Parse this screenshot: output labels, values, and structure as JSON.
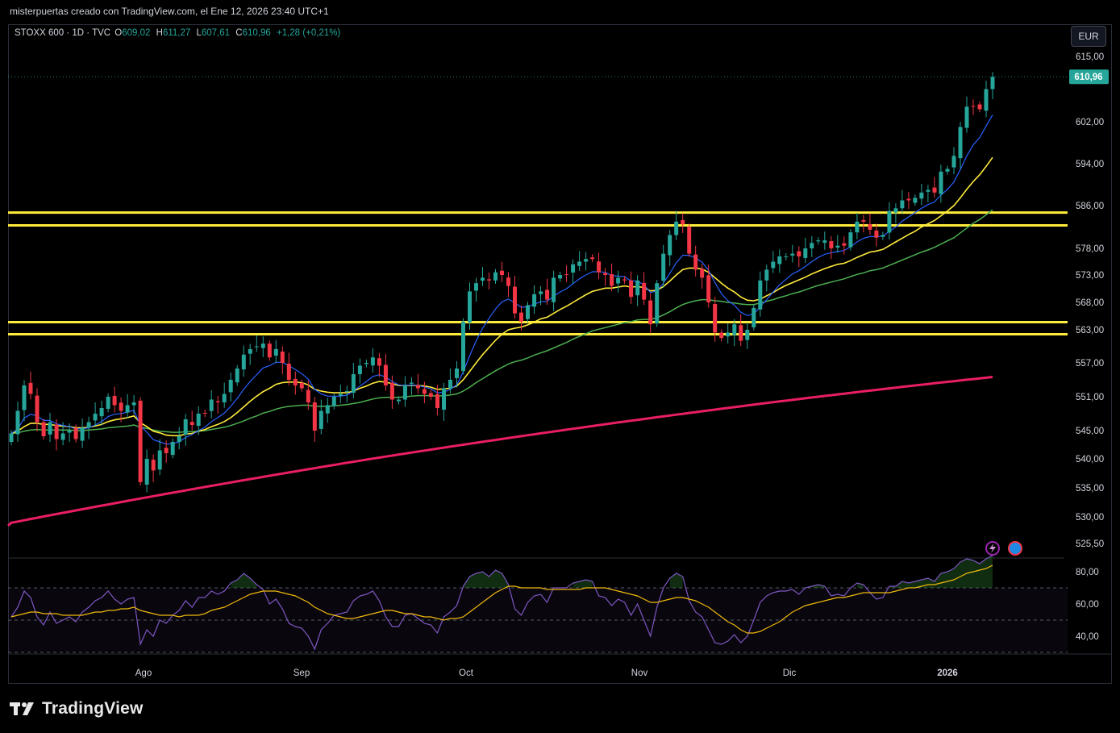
{
  "header": {
    "caption": "misterpuertas creado con TradingView.com, el Ene 12, 2026 23:40 UTC+1"
  },
  "legend": {
    "symbol": "STOXX 600 · 1D · TVC",
    "open_label": "O",
    "open": "609,02",
    "high_label": "H",
    "high": "611,27",
    "low_label": "L",
    "low": "607,61",
    "close_label": "C",
    "close": "610,96",
    "change": "+1,28 (+0,21%)"
  },
  "currency_button": "EUR",
  "last_price_label": "610,96",
  "footer": {
    "brand": "TradingView"
  },
  "colors": {
    "up": "#26a69a",
    "down": "#f23645",
    "ema_fast": "#2962ff",
    "ema_mid": "#ffeb3b",
    "ema_slow": "#4caf50",
    "ema_long": "#e91e63",
    "levels": "#ffeb3b",
    "rsi": "#7e57c2",
    "rsi_ma": "#f0b90b"
  },
  "icons": [
    "lightning-icon",
    "globe-icon"
  ],
  "chart_data": [
    {
      "type": "candlestick",
      "title": "",
      "currency": "EUR",
      "y_axis_ticks": [
        "615,00",
        "602,00",
        "594,00",
        "586,00",
        "578,00",
        "573,00",
        "568,00",
        "563,00",
        "557,00",
        "551,00",
        "545,00",
        "540,00",
        "535,00",
        "530,00",
        "525,50"
      ],
      "x_axis_ticks": [
        "Ago",
        "Sep",
        "Oct",
        "Nov",
        "Dic",
        "2026"
      ],
      "horizontal_levels": [
        584.7,
        582.3,
        564.4,
        562.2
      ],
      "series_names": [],
      "closes": [
        544.5,
        548.5,
        553.0,
        551.5,
        546.5,
        544.0,
        546.5,
        543.5,
        544.5,
        545.0,
        543.5,
        545.5,
        546.5,
        548.0,
        549.0,
        551.0,
        549.5,
        548.5,
        549.5,
        550.0,
        536.0,
        540.0,
        538.0,
        541.5,
        541.0,
        543.0,
        544.0,
        547.0,
        546.0,
        548.0,
        548.0,
        550.5,
        550.0,
        551.5,
        554.0,
        556.0,
        558.5,
        559.5,
        560.0,
        560.5,
        558.0,
        559.5,
        557.0,
        554.0,
        553.0,
        552.5,
        550.0,
        545.0,
        548.5,
        549.5,
        551.0,
        551.5,
        552.0,
        555.0,
        556.5,
        557.0,
        558.0,
        556.5,
        553.0,
        550.5,
        550.5,
        553.0,
        553.5,
        552.5,
        551.5,
        551.0,
        549.0,
        552.5,
        554.0,
        556.0,
        564.5,
        570.0,
        571.5,
        572.5,
        572.0,
        573.5,
        573.0,
        571.0,
        566.0,
        564.5,
        567.5,
        569.5,
        570.0,
        568.5,
        572.5,
        573.0,
        573.0,
        575.0,
        575.5,
        576.0,
        576.0,
        573.5,
        573.0,
        571.0,
        572.5,
        572.0,
        569.0,
        572.0,
        568.5,
        564.0,
        571.5,
        577.0,
        580.5,
        583.0,
        582.5,
        577.0,
        574.0,
        572.5,
        568.0,
        562.5,
        561.5,
        562.5,
        564.0,
        561.0,
        563.0,
        567.0,
        572.0,
        574.0,
        575.5,
        576.5,
        576.5,
        577.0,
        576.5,
        578.0,
        579.0,
        579.5,
        579.5,
        578.0,
        578.5,
        578.5,
        581.0,
        583.0,
        583.0,
        581.5,
        580.0,
        580.5,
        585.0,
        585.5,
        587.0,
        587.0,
        587.5,
        588.5,
        589.0,
        588.5,
        592.5,
        593.0,
        595.5,
        601.0,
        605.0,
        605.0,
        604.5,
        608.5,
        610.96
      ],
      "ema_fast": [
        544.5,
        545.3,
        547.2,
        547.9,
        547.6,
        546.8,
        546.8,
        546.2,
        545.9,
        545.7,
        545.3,
        545.3,
        545.5,
        546.0,
        546.6,
        547.5,
        547.9,
        548.0,
        548.3,
        548.6,
        545.9,
        544.7,
        543.4,
        543.0,
        542.6,
        542.7,
        543.0,
        543.8,
        544.3,
        545.0,
        545.6,
        546.6,
        547.3,
        548.1,
        549.3,
        550.7,
        552.3,
        553.7,
        554.9,
        556.1,
        556.5,
        557.1,
        557.1,
        556.5,
        555.8,
        555.1,
        554.1,
        552.3,
        551.5,
        551.1,
        551.1,
        551.1,
        551.3,
        552.0,
        552.9,
        553.7,
        554.6,
        554.9,
        554.5,
        553.7,
        553.1,
        553.0,
        553.1,
        553.0,
        552.7,
        552.4,
        551.7,
        551.8,
        552.3,
        553.1,
        555.4,
        558.3,
        561.0,
        563.3,
        565.1,
        566.8,
        568.1,
        568.6,
        567.9,
        567.1,
        567.2,
        567.7,
        568.1,
        568.2,
        569.1,
        569.9,
        570.5,
        571.4,
        572.3,
        573.0,
        573.6,
        573.6,
        573.5,
        572.9,
        572.8,
        572.7,
        571.9,
        571.9,
        571.2,
        569.8,
        570.1,
        571.5,
        573.3,
        575.3,
        576.7,
        576.7,
        576.2,
        575.4,
        573.9,
        571.6,
        569.6,
        568.3,
        567.5,
        566.2,
        565.6,
        565.9,
        567.2,
        568.5,
        569.9,
        571.2,
        572.2,
        573.2,
        573.8,
        574.6,
        575.5,
        576.3,
        576.9,
        577.2,
        577.4,
        577.6,
        578.3,
        579.2,
        579.9,
        580.2,
        580.2,
        580.3,
        581.2,
        582.0,
        583.1,
        583.9,
        584.7,
        585.5,
        586.2,
        586.7,
        588.0,
        589.1,
        590.5,
        592.9,
        595.5,
        597.6,
        599.0,
        601.2,
        603.4
      ],
      "ema_mid": [
        544.5,
        544.9,
        545.7,
        546.3,
        546.3,
        546.1,
        546.1,
        545.9,
        545.8,
        545.7,
        545.5,
        545.5,
        545.6,
        545.8,
        546.1,
        546.6,
        546.9,
        547.1,
        547.3,
        547.6,
        546.4,
        545.7,
        544.9,
        544.6,
        544.2,
        544.1,
        544.1,
        544.4,
        544.5,
        544.9,
        545.2,
        545.7,
        546.1,
        546.6,
        547.3,
        548.2,
        549.2,
        550.2,
        551.1,
        551.9,
        552.5,
        553.2,
        553.5,
        553.6,
        553.6,
        553.5,
        553.1,
        552.3,
        552.0,
        551.8,
        551.7,
        551.7,
        551.7,
        552.0,
        552.5,
        552.9,
        553.4,
        553.7,
        553.6,
        553.3,
        553.0,
        553.0,
        553.0,
        553.0,
        552.9,
        552.7,
        552.3,
        552.4,
        552.5,
        552.9,
        554.0,
        555.5,
        557.0,
        558.5,
        559.8,
        561.1,
        562.2,
        563.0,
        563.3,
        563.5,
        563.9,
        564.4,
        565.0,
        565.3,
        566.0,
        566.7,
        567.3,
        568.0,
        568.7,
        569.4,
        570.0,
        570.3,
        570.6,
        570.6,
        570.8,
        571.0,
        570.8,
        570.9,
        570.7,
        570.1,
        570.2,
        570.9,
        571.9,
        573.0,
        574.0,
        574.3,
        574.3,
        574.1,
        573.5,
        572.5,
        571.5,
        570.6,
        569.9,
        569.0,
        568.4,
        568.3,
        568.6,
        569.2,
        569.8,
        570.5,
        571.1,
        571.6,
        572.1,
        572.6,
        573.2,
        573.7,
        574.2,
        574.6,
        575.0,
        575.2,
        575.7,
        576.3,
        576.8,
        577.3,
        577.5,
        577.8,
        578.5,
        579.2,
        579.9,
        580.6,
        581.2,
        582.0,
        582.6,
        583.2,
        584.1,
        585.0,
        586.0,
        587.5,
        589.1,
        590.6,
        591.9,
        593.5,
        595.2
      ],
      "ema_slow": [
        544.5,
        544.6,
        544.9,
        545.1,
        545.2,
        545.1,
        545.1,
        545.1,
        545.1,
        545.1,
        545.0,
        545.0,
        545.1,
        545.2,
        545.3,
        545.5,
        545.6,
        545.7,
        545.8,
        546.0,
        545.6,
        545.4,
        545.1,
        544.9,
        544.8,
        544.7,
        544.7,
        544.8,
        544.8,
        544.9,
        545.0,
        545.2,
        545.4,
        545.6,
        545.9,
        546.3,
        546.7,
        547.2,
        547.6,
        548.1,
        548.4,
        548.8,
        549.1,
        549.3,
        549.4,
        549.5,
        549.5,
        549.3,
        549.3,
        549.3,
        549.4,
        549.5,
        549.6,
        549.8,
        550.0,
        550.3,
        550.6,
        550.8,
        550.9,
        550.9,
        550.9,
        551.0,
        551.1,
        551.2,
        551.2,
        551.2,
        551.1,
        551.2,
        551.3,
        551.5,
        552.0,
        552.7,
        553.5,
        554.2,
        554.9,
        555.6,
        556.2,
        556.8,
        557.2,
        557.5,
        557.9,
        558.4,
        558.8,
        559.2,
        559.7,
        560.2,
        560.7,
        561.3,
        561.8,
        562.3,
        562.8,
        563.1,
        563.4,
        563.7,
        564.0,
        564.3,
        564.5,
        564.8,
        564.9,
        564.9,
        565.2,
        565.7,
        566.3,
        567.0,
        567.6,
        568.0,
        568.3,
        568.5,
        568.5,
        568.3,
        568.2,
        568.0,
        567.9,
        567.7,
        567.6,
        567.6,
        567.9,
        568.2,
        568.5,
        568.9,
        569.2,
        569.6,
        569.9,
        570.3,
        570.7,
        571.1,
        571.4,
        571.7,
        572.0,
        572.3,
        572.7,
        573.1,
        573.4,
        573.8,
        574.0,
        574.3,
        574.8,
        575.3,
        575.8,
        576.3,
        576.8,
        577.3,
        577.7,
        578.2,
        578.8,
        579.4,
        580.0,
        580.9,
        581.8,
        582.7,
        583.4,
        584.3,
        585.2
      ]
    },
    {
      "type": "line",
      "title": "",
      "series_names": [],
      "y_axis_ticks": [
        "80,00",
        "60,00",
        "40,00"
      ],
      "bands": [
        70,
        50,
        30
      ],
      "rsi": [
        52,
        58,
        68,
        64,
        52,
        47,
        55,
        48,
        50,
        52,
        49,
        55,
        58,
        62,
        64,
        68,
        63,
        60,
        63,
        64,
        35,
        44,
        40,
        50,
        48,
        53,
        56,
        62,
        58,
        64,
        64,
        68,
        66,
        68,
        73,
        75,
        79,
        76,
        72,
        69,
        60,
        63,
        57,
        48,
        46,
        45,
        40,
        32,
        44,
        48,
        53,
        54,
        55,
        62,
        65,
        66,
        68,
        62,
        52,
        46,
        46,
        53,
        54,
        51,
        48,
        47,
        42,
        52,
        55,
        59,
        71,
        77,
        79,
        80,
        77,
        81,
        79,
        72,
        57,
        53,
        61,
        65,
        66,
        61,
        70,
        70,
        70,
        73,
        74,
        75,
        74,
        65,
        64,
        59,
        63,
        61,
        53,
        60,
        50,
        40,
        58,
        70,
        76,
        79,
        77,
        62,
        55,
        52,
        44,
        36,
        35,
        37,
        41,
        36,
        40,
        50,
        61,
        65,
        67,
        68,
        68,
        69,
        66,
        70,
        71,
        72,
        71,
        65,
        66,
        65,
        70,
        73,
        72,
        67,
        63,
        64,
        71,
        71,
        74,
        73,
        74,
        75,
        76,
        74,
        79,
        80,
        82,
        86,
        88,
        87,
        85,
        88,
        90
      ],
      "rsi_ma": [
        52,
        53,
        54,
        55,
        55,
        54,
        54,
        54,
        53,
        53,
        53,
        53,
        54,
        55,
        55,
        56,
        56,
        57,
        57,
        58,
        56,
        55,
        54,
        53,
        53,
        53,
        52,
        53,
        53,
        53,
        54,
        56,
        57,
        58,
        60,
        62,
        64,
        66,
        67,
        68,
        68,
        68,
        67,
        66,
        65,
        63,
        61,
        58,
        56,
        54,
        53,
        52,
        51,
        51,
        52,
        53,
        54,
        55,
        56,
        56,
        55,
        54,
        54,
        53,
        52,
        52,
        51,
        50,
        51,
        51,
        52,
        55,
        58,
        61,
        64,
        67,
        69,
        71,
        71,
        70,
        70,
        70,
        70,
        69,
        69,
        69,
        69,
        69,
        69,
        70,
        70,
        70,
        70,
        69,
        68,
        67,
        66,
        65,
        63,
        61,
        61,
        62,
        63,
        64,
        64,
        63,
        62,
        60,
        58,
        55,
        52,
        49,
        47,
        44,
        42,
        42,
        43,
        45,
        47,
        49,
        52,
        55,
        57,
        59,
        60,
        61,
        62,
        63,
        64,
        64,
        65,
        66,
        67,
        67,
        67,
        67,
        67,
        68,
        69,
        70,
        70,
        71,
        72,
        72,
        73,
        74,
        75,
        77,
        79,
        80,
        81,
        82,
        84
      ]
    }
  ]
}
